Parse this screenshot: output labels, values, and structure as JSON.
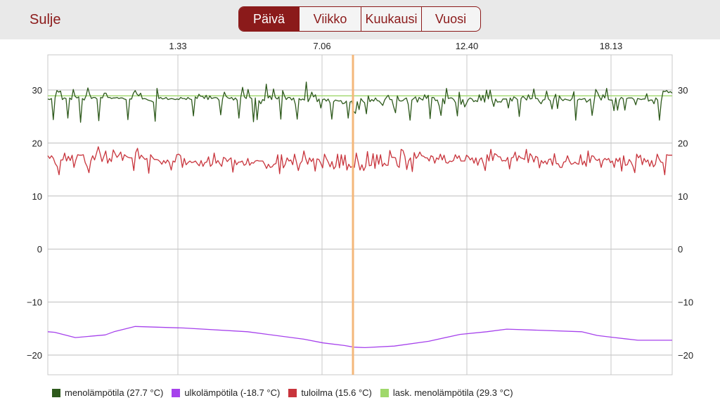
{
  "header": {
    "close_label": "Sulje",
    "tabs": [
      {
        "label": "Päivä",
        "active": true
      },
      {
        "label": "Viikko",
        "active": false
      },
      {
        "label": "Kuukausi",
        "active": false
      },
      {
        "label": "Vuosi",
        "active": false
      }
    ]
  },
  "chart_data": {
    "type": "line",
    "x_ticks": [
      "1.33",
      "7.06",
      "12.40",
      "18.13"
    ],
    "y_ticks": [
      30,
      20,
      10,
      0,
      -10,
      -20
    ],
    "ylim": [
      -23.5,
      37
    ],
    "grid": true,
    "cursor": {
      "color": "#f4b77a"
    },
    "series": [
      {
        "name": "menolämpötila (27.7 °C)",
        "color": "#2e5a1c",
        "base": 28.3,
        "values": [
          28.3,
          28.2,
          28.4,
          24.4,
          28.6,
          29.9,
          29.6,
          29.8,
          28.2,
          28.5,
          28.4,
          24.7,
          28.5,
          28.2,
          30.1,
          28.8,
          28.5,
          28.7,
          23.9,
          28.4,
          28.1,
          28.9,
          30.4,
          29.2,
          28.4,
          28.6,
          28.6,
          28.3,
          24.2,
          28.6,
          28.5,
          29.4,
          29.4,
          28.6,
          28.6,
          28.4,
          28.5,
          28.5,
          28.6,
          28.4,
          28.5,
          28.5,
          28.3,
          28.2,
          24.4,
          28.3,
          28.3,
          29.4,
          29.9,
          29.2,
          28.9,
          29.4,
          28.3,
          28.4,
          28.3,
          28.1,
          28.0,
          27.9,
          27.7,
          24.1,
          30.3,
          28.4,
          28.6,
          28.3,
          28.4,
          28.6,
          28.2,
          28.3,
          28.4,
          28.3,
          28.2,
          28.3,
          28.2,
          28.6,
          28.4,
          28.4,
          28.2,
          28.6,
          28.3,
          28.2,
          25.1,
          28.7,
          28.4,
          29.2,
          28.8,
          28.8,
          28.4,
          29.0,
          28.2,
          28.9,
          28.4,
          28.5,
          28.6,
          28.5,
          28.1,
          25.3,
          28.3,
          29.6,
          28.8,
          28.5,
          28.4,
          28.6,
          28.1,
          28.5,
          28.1,
          24.7,
          28.6,
          30.5,
          28.7,
          28.4,
          30.1,
          28.6,
          28.4,
          24.0,
          28.5,
          24.4,
          28.0,
          27.4,
          28.2,
          28.0,
          31.1,
          28.5,
          28.9,
          28.2,
          30.2,
          28.6,
          28.3,
          28.7,
          24.5,
          29.9,
          28.9,
          28.2,
          28.6,
          28.6,
          28.1,
          28.5,
          27.3,
          24.5,
          28.4,
          28.1,
          28.3,
          28.1,
          31.5,
          27.8,
          28.5,
          29.6,
          28.7,
          29.1,
          27.8,
          28.3,
          26.6,
          28.2,
          28.3,
          27.9,
          28.3,
          27.6,
          24.5,
          27.8,
          28.1,
          28.0,
          27.9,
          28.0,
          27.4,
          27.5,
          27.9,
          24.7,
          27.7,
          27.9,
          26.0,
          25.6,
          27.8,
          26.3,
          28.4,
          27.9,
          27.6,
          25.5,
          28.9,
          27.8,
          28.2,
          27.9,
          28.5,
          28.0,
          27.9,
          27.5,
          27.1,
          28.1,
          28.6,
          29.0,
          28.2,
          28.2,
          26.8,
          25.7,
          28.9,
          28.0,
          27.9,
          28.0,
          28.3,
          28.5,
          27.3,
          24.3,
          28.1,
          28.4,
          28.7,
          27.7,
          28.6,
          28.3,
          28.1,
          29.1,
          28.4,
          29.0,
          24.6,
          28.6,
          28.6,
          28.0,
          28.1,
          27.0,
          25.2,
          28.4,
          27.4,
          30.3,
          28.4,
          28.5,
          28.5,
          28.2,
          27.6,
          25.1,
          29.6,
          27.3,
          28.2,
          26.8,
          27.5,
          28.2,
          28.5,
          28.3,
          27.8,
          28.0,
          27.8,
          29.1,
          28.0,
          29.0,
          27.7,
          30.0,
          28.3,
          30.0,
          28.1,
          26.9,
          28.3,
          27.7,
          27.8,
          27.7,
          28.3,
          28.3,
          28.3,
          26.6,
          28.5,
          27.9,
          28.7,
          28.5,
          28.2,
          25.0,
          28.4,
          28.8,
          28.5,
          28.1,
          29.1,
          28.3,
          28.4,
          30.2,
          28.4,
          28.4,
          27.8,
          27.4,
          28.1,
          28.2,
          29.8,
          28.3,
          28.0,
          26.4,
          28.3,
          29.2,
          26.5,
          28.9,
          28.3,
          28.0,
          28.3,
          28.2,
          28.1,
          28.0,
          28.4,
          29.7,
          24.3,
          28.1,
          28.3,
          28.2,
          28.3,
          28.4,
          27.7,
          28.0,
          28.3,
          25.2,
          27.6,
          30.1,
          29.5,
          28.7,
          28.1,
          29.1,
          28.5,
          30.3,
          28.2,
          28.1,
          28.1,
          26.1,
          28.5,
          26.2,
          28.1,
          28.6,
          28.4,
          26.2,
          28.4,
          28.5,
          28.5,
          28.5,
          28.2,
          27.2,
          28.4,
          28.3,
          28.2,
          28.3,
          28.3,
          29.3,
          27.9,
          28.1,
          28.1,
          27.4,
          28.5,
          28.1,
          24.3,
          27.9,
          29.8,
          29.7,
          29.9,
          29.5,
          29.7,
          29.4
        ],
        "xlabel_min": 0
      },
      {
        "name": "ulkolämpötila (-18.7 °C)",
        "color": "#a642ec",
        "points": [
          [
            0.0,
            -15.6
          ],
          [
            0.011,
            -15.7
          ],
          [
            0.044,
            -16.7
          ],
          [
            0.092,
            -16.2
          ],
          [
            0.106,
            -15.6
          ],
          [
            0.14,
            -14.6
          ],
          [
            0.218,
            -14.9
          ],
          [
            0.32,
            -15.6
          ],
          [
            0.41,
            -17.0
          ],
          [
            0.441,
            -17.7
          ],
          [
            0.475,
            -18.2
          ],
          [
            0.49,
            -18.5
          ],
          [
            0.508,
            -18.6
          ],
          [
            0.555,
            -18.3
          ],
          [
            0.61,
            -17.4
          ],
          [
            0.66,
            -16.1
          ],
          [
            0.703,
            -15.6
          ],
          [
            0.735,
            -15.1
          ],
          [
            0.855,
            -15.6
          ],
          [
            0.88,
            -16.3
          ],
          [
            0.908,
            -16.7
          ],
          [
            0.945,
            -17.2
          ],
          [
            1.0,
            -17.2
          ]
        ]
      },
      {
        "name": "tuloilma (15.6 °C)",
        "color": "#c8343c",
        "base": 16.8,
        "values": [
          17.6,
          17.1,
          17.6,
          17.1,
          16.1,
          15.6,
          14.0,
          16.8,
          16.8,
          18.1,
          16.6,
          17.5,
          16.7,
          17.7,
          15.4,
          16.8,
          17.8,
          17.7,
          17.7,
          17.8,
          16.3,
          15.6,
          14.4,
          16.6,
          17.6,
          16.8,
          18.0,
          19.3,
          18.0,
          16.5,
          17.5,
          18.5,
          16.2,
          17.1,
          16.5,
          18.7,
          18.0,
          17.3,
          17.7,
          18.3,
          16.7,
          17.8,
          17.5,
          17.3,
          17.2,
          17.2,
          14.8,
          18.2,
          19.0,
          17.0,
          17.7,
          17.3,
          16.9,
          17.1,
          14.3,
          17.8,
          17.3,
          16.9,
          16.9,
          16.8,
          16.5,
          16.0,
          16.7,
          16.2,
          16.8,
          16.3,
          14.9,
          16.6,
          16.4,
          17.8,
          17.9,
          17.6,
          15.4,
          17.1,
          15.9,
          16.3,
          16.6,
          16.3,
          16.4,
          16.6,
          16.1,
          15.7,
          16.7,
          15.6,
          16.3,
          16.4,
          17.4,
          15.6,
          16.0,
          18.1,
          16.2,
          16.7,
          16.1,
          15.6,
          17.3,
          17.1,
          16.5,
          16.9,
          17.2,
          14.5,
          16.8,
          15.9,
          16.4,
          16.4,
          16.6,
          15.8,
          16.0,
          17.1,
          15.8,
          16.3,
          16.2,
          16.6,
          16.7,
          16.6,
          16.6,
          16.6,
          16.0,
          15.2,
          16.0,
          15.4,
          15.5,
          16.0,
          16.1,
          17.8,
          14.2,
          17.8,
          15.3,
          16.0,
          17.2,
          16.6,
          16.8,
          15.9,
          17.9,
          16.4,
          14.8,
          16.1,
          16.6,
          18.5,
          17.0,
          16.0,
          17.2,
          16.5,
          17.1,
          14.7,
          17.0,
          16.9,
          16.2,
          15.3,
          17.9,
          17.1,
          16.4,
          15.5,
          16.5,
          15.1,
          15.6,
          17.9,
          15.3,
          17.8,
          15.8,
          17.7,
          14.9,
          16.0,
          15.4,
          15.6,
          15.4,
          18.1,
          16.5,
          14.9,
          15.9,
          14.8,
          15.6,
          18.4,
          15.7,
          15.8,
          18.0,
          15.2,
          17.8,
          16.0,
          17.8,
          15.6,
          16.2,
          15.8,
          15.8,
          18.6,
          17.3,
          17.3,
          17.2,
          15.7,
          15.4,
          18.8,
          18.6,
          17.5,
          15.0,
          16.6,
          17.2,
          14.6,
          18.2,
          17.1,
          17.5,
          18.3,
          17.6,
          17.5,
          17.2,
          17.2,
          16.6,
          17.6,
          17.4,
          16.2,
          17.2,
          16.9,
          17.9,
          16.8,
          17.7,
          16.3,
          16.2,
          16.6,
          16.5,
          16.7,
          17.8,
          17.1,
          17.6,
          16.6,
          16.6,
          16.6,
          17.7,
          17.4,
          16.8,
          17.2,
          16.2,
          17.2,
          15.8,
          16.9,
          17.2,
          16.1,
          14.8,
          17.8,
          16.6,
          18.8,
          16.7,
          18.0,
          17.8,
          17.4,
          17.4,
          16.6,
          16.7,
          16.6,
          17.3,
          15.1,
          17.2,
          17.3,
          18.3,
          16.6,
          17.6,
          17.2,
          17.1,
          16.9,
          18.8,
          16.3,
          18.0,
          17.5,
          16.4,
          17.5,
          17.3,
          15.3,
          16.7,
          16.2,
          16.6,
          16.0,
          16.9,
          17.0,
          15.8,
          18.0,
          16.1,
          16.1,
          15.4,
          15.4,
          16.4,
          16.5,
          17.6,
          16.6,
          16.0,
          16.1,
          16.4,
          16.1,
          16.0,
          17.8,
          15.9,
          16.6,
          15.6,
          18.5,
          16.3,
          17.6,
          17.5,
          16.9,
          16.7,
          17.0,
          15.4,
          16.7,
          17.1,
          16.8,
          17.1,
          16.3,
          16.6,
          15.4,
          17.1,
          16.5,
          17.2,
          14.7,
          17.6,
          15.8,
          15.9,
          16.9,
          16.4,
          15.6,
          14.4,
          17.9,
          17.2,
          17.7,
          15.9,
          17.1,
          16.4,
          16.8,
          15.6,
          16.7,
          15.5,
          16.0,
          17.9,
          17.0,
          16.4,
          16.3,
          14.0,
          17.8,
          17.7,
          17.7,
          17.7
        ]
      },
      {
        "name": "lask. menolämpötila (29.3 °C)",
        "color": "#9fd86b",
        "points": [
          [
            0.0,
            28.9
          ],
          [
            1.0,
            28.9
          ]
        ]
      }
    ]
  }
}
